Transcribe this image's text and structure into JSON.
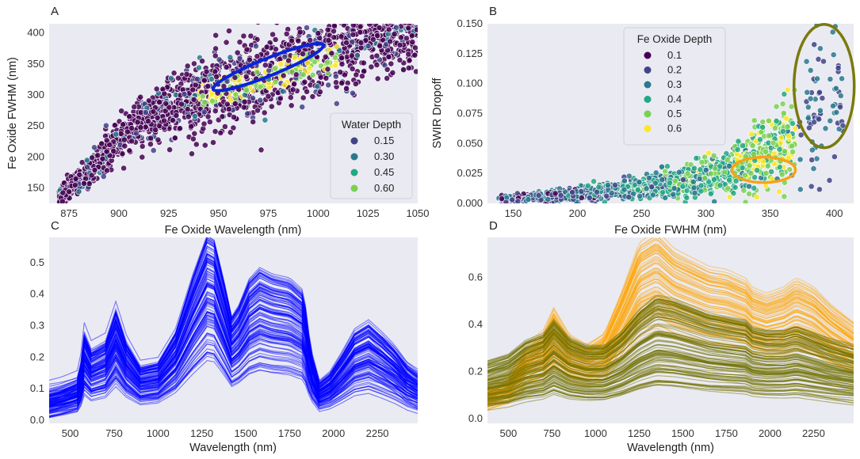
{
  "chart_data": [
    {
      "panel": "A",
      "type": "scatter",
      "xlabel": "Fe Oxide Wavelength (nm)",
      "ylabel": "Fe Oxide FWHM (nm)",
      "xlim": [
        865,
        1050
      ],
      "ylim": [
        125,
        415
      ],
      "xticks": [
        875,
        900,
        925,
        950,
        975,
        1000,
        1025,
        1050
      ],
      "yticks": [
        150,
        200,
        250,
        300,
        350,
        400
      ],
      "legend": {
        "title": "Water Depth",
        "position": "lower-right",
        "entries": [
          "0.15",
          "0.30",
          "0.45",
          "0.60"
        ],
        "colors": [
          "#414487",
          "#2a788e",
          "#22a884",
          "#7ad151"
        ]
      },
      "cloud": [
        {
          "x": 870,
          "y": 135
        },
        {
          "x": 880,
          "y": 160
        },
        {
          "x": 890,
          "y": 195
        },
        {
          "x": 900,
          "y": 225
        },
        {
          "x": 910,
          "y": 255
        },
        {
          "x": 925,
          "y": 280
        },
        {
          "x": 945,
          "y": 300
        },
        {
          "x": 965,
          "y": 320
        },
        {
          "x": 985,
          "y": 345
        },
        {
          "x": 1005,
          "y": 370
        },
        {
          "x": 1025,
          "y": 390
        },
        {
          "x": 1045,
          "y": 405
        }
      ],
      "annotation": {
        "shape": "ellipse",
        "color": "#0a24d8",
        "center": [
          975,
          345
        ],
        "note": "blue ellipse along trend"
      }
    },
    {
      "panel": "B",
      "type": "scatter",
      "xlabel": "Fe Oxide FWHM (nm)",
      "ylabel": "SWIR Dropoff",
      "xlim": [
        130,
        415
      ],
      "ylim": [
        0,
        0.15
      ],
      "xticks": [
        150,
        200,
        250,
        300,
        350,
        400
      ],
      "yticks": [
        "0.000",
        "0.025",
        "0.050",
        "0.075",
        "0.100",
        "0.125",
        "0.150"
      ],
      "legend": {
        "title": "Fe Oxide Depth",
        "position": "upper-center",
        "entries": [
          "0.1",
          "0.2",
          "0.3",
          "0.4",
          "0.5",
          "0.6"
        ],
        "colors": [
          "#440154",
          "#414487",
          "#2a788e",
          "#22a884",
          "#7ad151",
          "#fde725"
        ]
      },
      "cloud": [
        {
          "x": 140,
          "y": 0.004
        },
        {
          "x": 180,
          "y": 0.006
        },
        {
          "x": 220,
          "y": 0.01
        },
        {
          "x": 260,
          "y": 0.014
        },
        {
          "x": 300,
          "y": 0.022
        },
        {
          "x": 330,
          "y": 0.032
        },
        {
          "x": 355,
          "y": 0.045
        },
        {
          "x": 375,
          "y": 0.065
        },
        {
          "x": 395,
          "y": 0.095
        },
        {
          "x": 410,
          "y": 0.12
        }
      ],
      "annotations": [
        {
          "shape": "ellipse",
          "color": "#f5a31a",
          "center": [
            345,
            0.028
          ],
          "note": "orange ellipse"
        },
        {
          "shape": "ellipse",
          "color": "#7a7a0c",
          "center": [
            392,
            0.098
          ],
          "note": "olive ellipse"
        }
      ]
    },
    {
      "panel": "C",
      "type": "line",
      "xlabel": "Wavelength (nm)",
      "ylabel": "",
      "xlim": [
        380,
        2480
      ],
      "ylim": [
        -0.01,
        0.58
      ],
      "xticks": [
        500,
        750,
        1000,
        1250,
        1500,
        1750,
        2000,
        2250
      ],
      "yticks": [
        "0.0",
        "0.1",
        "0.2",
        "0.3",
        "0.4",
        "0.5"
      ],
      "color": "#0000ff",
      "n_spectra": 110,
      "base_spectrum": {
        "x": [
          380,
          450,
          550,
          580,
          620,
          700,
          760,
          820,
          900,
          1000,
          1100,
          1200,
          1280,
          1320,
          1380,
          1420,
          1460,
          1520,
          1580,
          1650,
          1750,
          1830,
          1870,
          1920,
          1980,
          2050,
          2120,
          2200,
          2280,
          2350,
          2420,
          2480
        ],
        "y": [
          0.055,
          0.065,
          0.085,
          0.195,
          0.155,
          0.175,
          0.25,
          0.175,
          0.12,
          0.13,
          0.2,
          0.33,
          0.42,
          0.41,
          0.31,
          0.235,
          0.26,
          0.32,
          0.345,
          0.33,
          0.32,
          0.29,
          0.16,
          0.085,
          0.105,
          0.15,
          0.2,
          0.22,
          0.19,
          0.16,
          0.12,
          0.1
        ]
      },
      "spread": [
        0.45,
        1.4
      ]
    },
    {
      "panel": "D",
      "type": "line",
      "xlabel": "Wavelength (nm)",
      "ylabel": "",
      "xlim": [
        380,
        2480
      ],
      "ylim": [
        -0.02,
        0.77
      ],
      "xticks": [
        500,
        750,
        1000,
        1250,
        1500,
        1750,
        2000,
        2250
      ],
      "yticks": [
        "0.0",
        "0.2",
        "0.4",
        "0.6"
      ],
      "series": [
        {
          "name": "orange group",
          "color": "#ffa500",
          "n_spectra": 80,
          "base_spectrum": {
            "x": [
              380,
              500,
              600,
              700,
              760,
              850,
              950,
              1050,
              1150,
              1250,
              1350,
              1450,
              1550,
              1650,
              1750,
              1860,
              1900,
              1980,
              2080,
              2150,
              2250,
              2350,
              2480
            ],
            "y": [
              0.09,
              0.13,
              0.23,
              0.28,
              0.36,
              0.27,
              0.24,
              0.28,
              0.42,
              0.58,
              0.62,
              0.56,
              0.53,
              0.5,
              0.49,
              0.46,
              0.43,
              0.41,
              0.43,
              0.46,
              0.43,
              0.37,
              0.31
            ]
          },
          "spread": [
            0.6,
            1.3
          ]
        },
        {
          "name": "olive group",
          "color": "#6f6f00",
          "n_spectra": 110,
          "base_spectrum": {
            "x": [
              380,
              500,
              600,
              700,
              760,
              850,
              950,
              1050,
              1150,
              1250,
              1350,
              1450,
              1550,
              1650,
              1750,
              1860,
              1900,
              1980,
              2080,
              2150,
              2250,
              2350,
              2480
            ],
            "y": [
              0.15,
              0.17,
              0.21,
              0.23,
              0.27,
              0.22,
              0.2,
              0.2,
              0.24,
              0.3,
              0.34,
              0.33,
              0.31,
              0.29,
              0.28,
              0.27,
              0.25,
              0.24,
              0.24,
              0.25,
              0.23,
              0.21,
              0.19
            ]
          },
          "spread": [
            0.4,
            1.55
          ]
        }
      ]
    }
  ]
}
